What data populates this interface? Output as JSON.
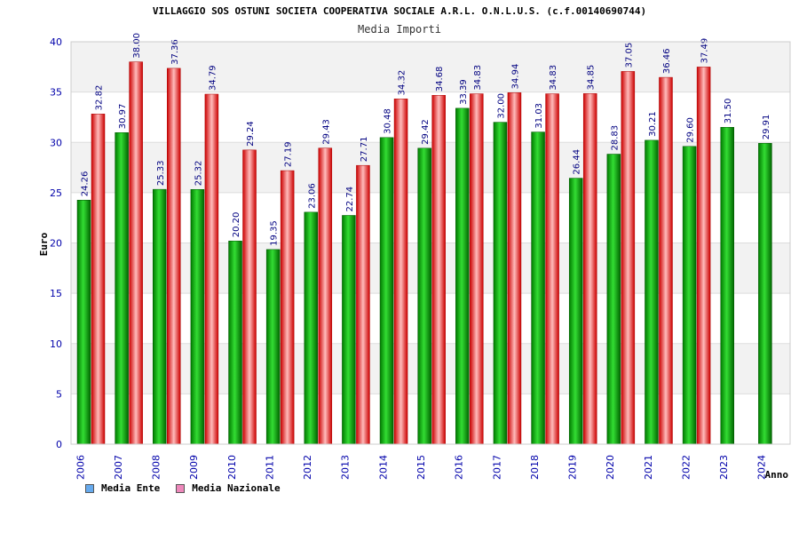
{
  "chart_data": {
    "type": "bar",
    "title": "VILLAGGIO SOS OSTUNI SOCIETA COOPERATIVA SOCIALE A.R.L. O.N.L.U.S. (c.f.00140690744)",
    "subtitle": "Media Importi",
    "xlabel": "Anno",
    "ylabel": "Euro",
    "ylim": [
      0,
      40
    ],
    "yticks": [
      "0",
      "5",
      "10",
      "15",
      "20",
      "25",
      "30",
      "35",
      "40"
    ],
    "categories": [
      "2006",
      "2007",
      "2008",
      "2009",
      "2010",
      "2011",
      "2012",
      "2013",
      "2014",
      "2015",
      "2016",
      "2017",
      "2018",
      "2019",
      "2020",
      "2021",
      "2022",
      "2023",
      "2024"
    ],
    "series": [
      {
        "name": "Media Ente",
        "color": "#00aa00",
        "values": [
          24.26,
          30.97,
          25.33,
          25.32,
          20.2,
          19.35,
          23.06,
          22.74,
          30.48,
          29.42,
          33.39,
          32.0,
          31.03,
          26.44,
          28.83,
          30.21,
          29.6,
          31.5,
          29.91
        ],
        "labels": [
          "24.26",
          "30.97",
          "25.33",
          "25.32",
          "20.20",
          "19.35",
          "23.06",
          "22.74",
          "30.48",
          "29.42",
          "33.39",
          "32.00",
          "31.03",
          "26.44",
          "28.83",
          "30.21",
          "29.60",
          "31.50",
          "29.91"
        ]
      },
      {
        "name": "Media Nazionale",
        "color": "#dd1111",
        "values": [
          32.82,
          38.0,
          37.36,
          34.79,
          29.24,
          27.19,
          29.43,
          27.71,
          34.32,
          34.68,
          34.83,
          34.94,
          34.83,
          34.85,
          37.05,
          36.46,
          37.49,
          null,
          null
        ],
        "labels": [
          "32.82",
          "38.00",
          "37.36",
          "34.79",
          "29.24",
          "27.19",
          "29.43",
          "27.71",
          "34.32",
          "34.68",
          "34.83",
          "34.94",
          "34.83",
          "34.85",
          "37.05",
          "36.46",
          "37.49",
          "",
          ""
        ]
      }
    ],
    "legend": [
      {
        "label": "Media Ente",
        "color": "#66aaee"
      },
      {
        "label": "Media Nazionale",
        "color": "#ee88bb"
      }
    ],
    "legend_position": "bottom-left",
    "grid": true
  }
}
